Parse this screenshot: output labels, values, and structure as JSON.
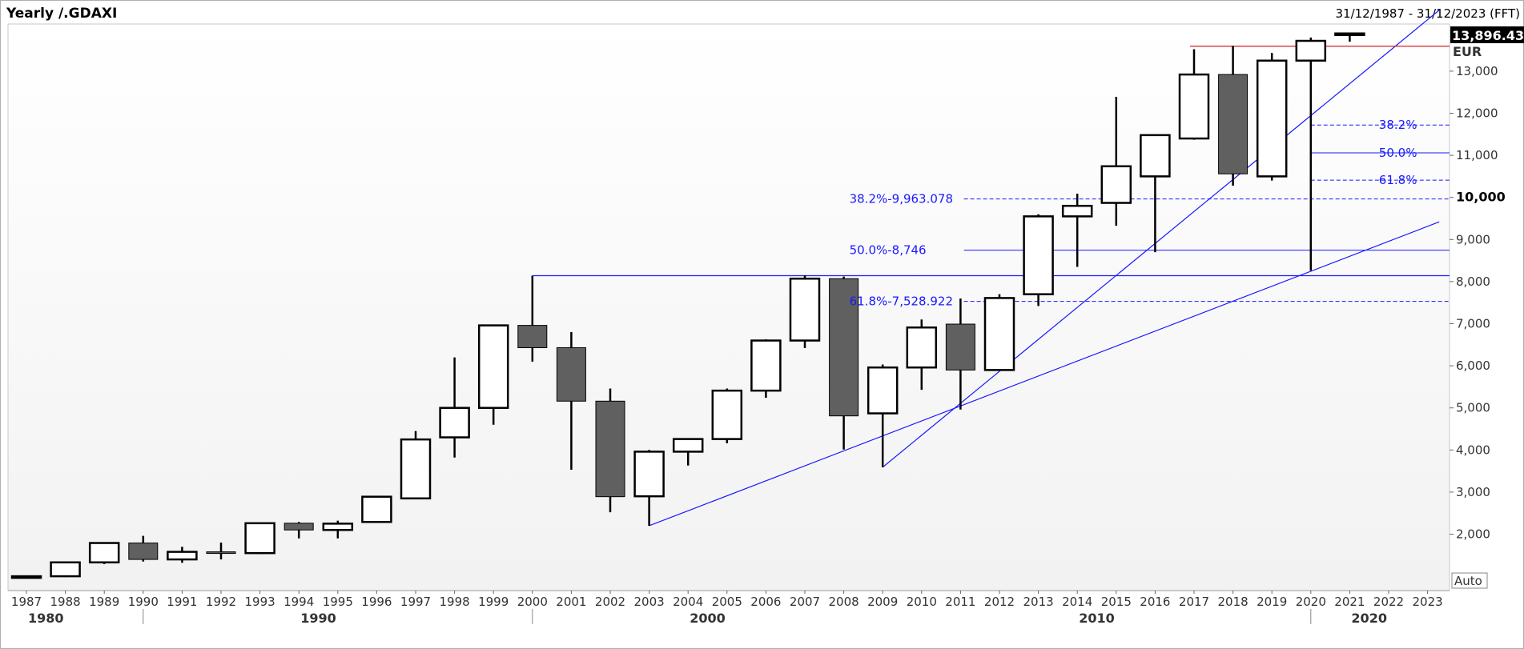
{
  "header": {
    "title": "Yearly /.GDAXI",
    "date_range": "31/12/1987 - 31/12/2023 (FFT)"
  },
  "last_price": "13,896.430",
  "unit": "EUR",
  "auto_button": "Auto",
  "colors": {
    "up_fill": "#ffffff",
    "down_fill": "#606060",
    "candle_stroke": "#000000",
    "trendline": "#1a1aff",
    "last_price_line": "#d62020",
    "last_price_box": "#000000"
  },
  "chart_data": {
    "type": "candlestick",
    "title": "Yearly /.GDAXI",
    "ylabel": "EUR",
    "ylim": [
      1000,
      14200
    ],
    "yticks": [
      {
        "value": 2000,
        "label": "2,000"
      },
      {
        "value": 3000,
        "label": "3,000"
      },
      {
        "value": 4000,
        "label": "4,000"
      },
      {
        "value": 5000,
        "label": "5,000"
      },
      {
        "value": 6000,
        "label": "6,000"
      },
      {
        "value": 7000,
        "label": "7,000"
      },
      {
        "value": 8000,
        "label": "8,000"
      },
      {
        "value": 9000,
        "label": "9,000"
      },
      {
        "value": 10000,
        "label": "10,000",
        "bold": true
      },
      {
        "value": 11000,
        "label": "11,000"
      },
      {
        "value": 12000,
        "label": "12,000"
      },
      {
        "value": 13000,
        "label": "13,000"
      }
    ],
    "years": [
      "1987",
      "1988",
      "1989",
      "1990",
      "1991",
      "1992",
      "1993",
      "1994",
      "1995",
      "1996",
      "1997",
      "1998",
      "1999",
      "2000",
      "2001",
      "2002",
      "2003",
      "2004",
      "2005",
      "2006",
      "2007",
      "2008",
      "2009",
      "2010",
      "2011",
      "2012",
      "2013",
      "2014",
      "2015",
      "2016",
      "2017",
      "2018",
      "2019",
      "2020",
      "2021",
      "2022",
      "2023"
    ],
    "decades": [
      {
        "label": "1980",
        "year": "1988"
      },
      {
        "label": "1990",
        "year": "1995"
      },
      {
        "label": "2000",
        "year": "2005"
      },
      {
        "label": "2010",
        "year": "2015"
      },
      {
        "label": "2020",
        "year": "2022"
      }
    ],
    "candles": [
      {
        "year": "1987",
        "open": 1000,
        "high": 1000,
        "low": 1000,
        "close": 1000
      },
      {
        "year": "1988",
        "open": 1000,
        "high": 1330,
        "low": 980,
        "close": 1330
      },
      {
        "year": "1989",
        "open": 1330,
        "high": 1790,
        "low": 1290,
        "close": 1790
      },
      {
        "year": "1990",
        "open": 1790,
        "high": 1960,
        "low": 1350,
        "close": 1400
      },
      {
        "year": "1991",
        "open": 1400,
        "high": 1700,
        "low": 1320,
        "close": 1580
      },
      {
        "year": "1992",
        "open": 1580,
        "high": 1800,
        "low": 1400,
        "close": 1550
      },
      {
        "year": "1993",
        "open": 1550,
        "high": 2270,
        "low": 1530,
        "close": 2260
      },
      {
        "year": "1994",
        "open": 2260,
        "high": 2290,
        "low": 1900,
        "close": 2100
      },
      {
        "year": "1995",
        "open": 2100,
        "high": 2320,
        "low": 1900,
        "close": 2250
      },
      {
        "year": "1996",
        "open": 2290,
        "high": 2900,
        "low": 2280,
        "close": 2890
      },
      {
        "year": "1997",
        "open": 2850,
        "high": 4450,
        "low": 2830,
        "close": 4250
      },
      {
        "year": "1998",
        "open": 4300,
        "high": 6200,
        "low": 3820,
        "close": 5000
      },
      {
        "year": "1999",
        "open": 5000,
        "high": 6960,
        "low": 4600,
        "close": 6960
      },
      {
        "year": "2000",
        "open": 6960,
        "high": 8140,
        "low": 6100,
        "close": 6430
      },
      {
        "year": "2001",
        "open": 6430,
        "high": 6800,
        "low": 3530,
        "close": 5160
      },
      {
        "year": "2002",
        "open": 5160,
        "high": 5460,
        "low": 2520,
        "close": 2890
      },
      {
        "year": "2003",
        "open": 2900,
        "high": 4000,
        "low": 2200,
        "close": 3960
      },
      {
        "year": "2004",
        "open": 3960,
        "high": 4270,
        "low": 3630,
        "close": 4260
      },
      {
        "year": "2005",
        "open": 4260,
        "high": 5460,
        "low": 4160,
        "close": 5410
      },
      {
        "year": "2006",
        "open": 5410,
        "high": 6630,
        "low": 5240,
        "close": 6600
      },
      {
        "year": "2007",
        "open": 6600,
        "high": 8150,
        "low": 6420,
        "close": 8070
      },
      {
        "year": "2008",
        "open": 8070,
        "high": 8120,
        "low": 4010,
        "close": 4810
      },
      {
        "year": "2009",
        "open": 4870,
        "high": 6030,
        "low": 3590,
        "close": 5960
      },
      {
        "year": "2010",
        "open": 5960,
        "high": 7100,
        "low": 5430,
        "close": 6910
      },
      {
        "year": "2011",
        "open": 6990,
        "high": 7600,
        "low": 4960,
        "close": 5900
      },
      {
        "year": "2012",
        "open": 5900,
        "high": 7700,
        "low": 5900,
        "close": 7610
      },
      {
        "year": "2013",
        "open": 7700,
        "high": 9600,
        "low": 7420,
        "close": 9550
      },
      {
        "year": "2014",
        "open": 9550,
        "high": 10090,
        "low": 8350,
        "close": 9800
      },
      {
        "year": "2015",
        "open": 9870,
        "high": 12390,
        "low": 9330,
        "close": 10740
      },
      {
        "year": "2016",
        "open": 10500,
        "high": 11480,
        "low": 8700,
        "close": 11480
      },
      {
        "year": "2017",
        "open": 11400,
        "high": 13520,
        "low": 11370,
        "close": 12920
      },
      {
        "year": "2018",
        "open": 12920,
        "high": 13600,
        "low": 10280,
        "close": 10560
      },
      {
        "year": "2019",
        "open": 10500,
        "high": 13430,
        "low": 10400,
        "close": 13250
      },
      {
        "year": "2020",
        "open": 13250,
        "high": 13800,
        "low": 8260,
        "close": 13720
      },
      {
        "year": "2021",
        "open": 13890,
        "high": 13896,
        "low": 13700,
        "close": 13896
      }
    ],
    "last_price": 13896.43,
    "fibonacci_left": [
      {
        "label": "38.2%-9,963.078",
        "value": 9963.078,
        "style": "dashed"
      },
      {
        "label": "50.0%-8,746",
        "value": 8746,
        "style": "solid"
      },
      {
        "label": "61.8%-7,528.922",
        "value": 7528.922,
        "style": "dashed"
      }
    ],
    "fibonacci_right": [
      {
        "label": "38.2%",
        "value": 11720,
        "style": "dashed"
      },
      {
        "label": "50.0%",
        "value": 11060,
        "style": "solid"
      },
      {
        "label": "61.8%",
        "value": 10410,
        "style": "dashed"
      }
    ],
    "horizontal_lines": [
      {
        "name": "high-2000",
        "from_year": "2000",
        "value": 8140
      }
    ],
    "trendlines": [
      {
        "from_year": "2003",
        "from_value": 2200,
        "to_year": "2023",
        "to_value": 9420
      },
      {
        "from_year": "2009",
        "from_value": 3590,
        "to_year": "2023",
        "to_value": 14450
      }
    ],
    "grid": false,
    "legend": "none"
  }
}
